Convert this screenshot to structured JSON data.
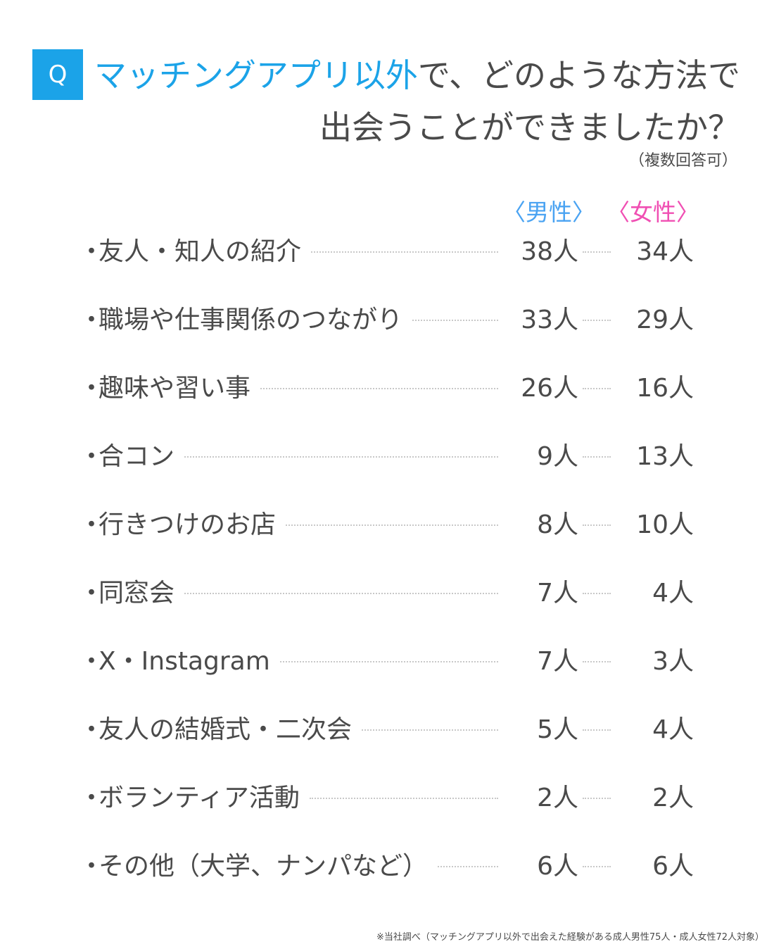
{
  "question": {
    "badge": "Q",
    "title_highlight": "マッチングアプリ以外",
    "title_rest": "で、どのような方法で",
    "title_line2": "出会うことができましたか？",
    "note": "（複数回答可）"
  },
  "headers": {
    "male": "〈男性〉",
    "female": "〈女性〉"
  },
  "bullet": "・",
  "chart_data": {
    "type": "table",
    "columns": [
      "〈男性〉",
      "〈女性〉"
    ],
    "rows": [
      {
        "label": "友人・知人の紹介",
        "male": "38人",
        "female": "34人"
      },
      {
        "label": "職場や仕事関係のつながり",
        "male": "33人",
        "female": "29人"
      },
      {
        "label": "趣味や習い事",
        "male": "26人",
        "female": "16人"
      },
      {
        "label": "合コン",
        "male": "9人",
        "female": "13人"
      },
      {
        "label": "行きつけのお店",
        "male": "8人",
        "female": "10人"
      },
      {
        "label": "同窓会",
        "male": "7人",
        "female": "4人"
      },
      {
        "label": "X・Instagram",
        "male": "7人",
        "female": "3人"
      },
      {
        "label": "友人の結婚式・二次会",
        "male": "5人",
        "female": "4人"
      },
      {
        "label": "ボランティア活動",
        "male": "2人",
        "female": "2人"
      },
      {
        "label": "その他（大学、ナンパなど）",
        "male": "6人",
        "female": "6人"
      }
    ]
  },
  "footer": "※当社調べ（マッチングアプリ以外で出会えた経験がある成人男性75人・成人女性72人対象）",
  "colors": {
    "accent_blue": "#1ba3e8",
    "male": "#4aa3f2",
    "female": "#f04fb3",
    "text": "#4a4a4a"
  }
}
